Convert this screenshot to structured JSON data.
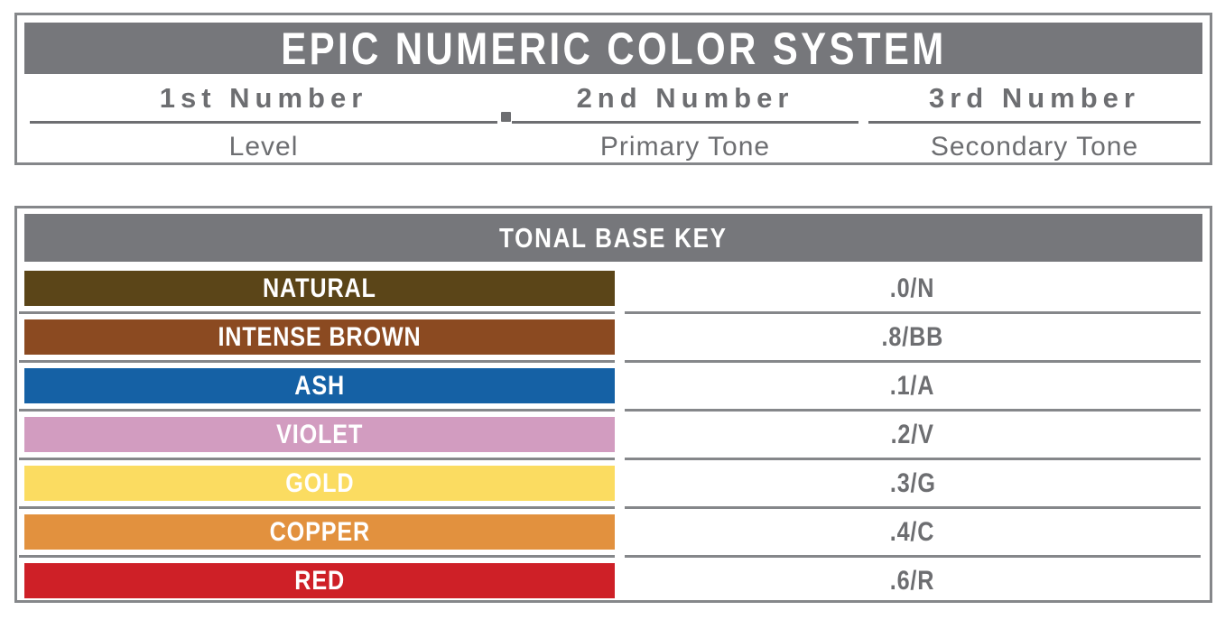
{
  "title_box": {
    "title": "EPIC NUMERIC COLOR SYSTEM",
    "separator_dot": ".",
    "columns": [
      {
        "number_label": "1st Number",
        "tone_label": "Level"
      },
      {
        "number_label": "2nd Number",
        "tone_label": "Primary Tone"
      },
      {
        "number_label": "3rd Number",
        "tone_label": "Secondary Tone"
      }
    ]
  },
  "tonal_key": {
    "header": "TONAL BASE KEY",
    "rows": [
      {
        "name": "NATURAL",
        "code": ".0/N",
        "color": "#5b4518"
      },
      {
        "name": "INTENSE BROWN",
        "code": ".8/BB",
        "color": "#8b4a21"
      },
      {
        "name": "ASH",
        "code": ".1/A",
        "color": "#1561a5"
      },
      {
        "name": "VIOLET",
        "code": ".2/V",
        "color": "#d29cc0"
      },
      {
        "name": "GOLD",
        "code": ".3/G",
        "color": "#fbdc61"
      },
      {
        "name": "COPPER",
        "code": ".4/C",
        "color": "#e2913e"
      },
      {
        "name": "RED",
        "code": ".6/R",
        "color": "#ce2027"
      }
    ]
  },
  "colors": {
    "header_bg": "#76777b",
    "text_gray": "#6d6e71",
    "border_gray": "#85878a"
  }
}
